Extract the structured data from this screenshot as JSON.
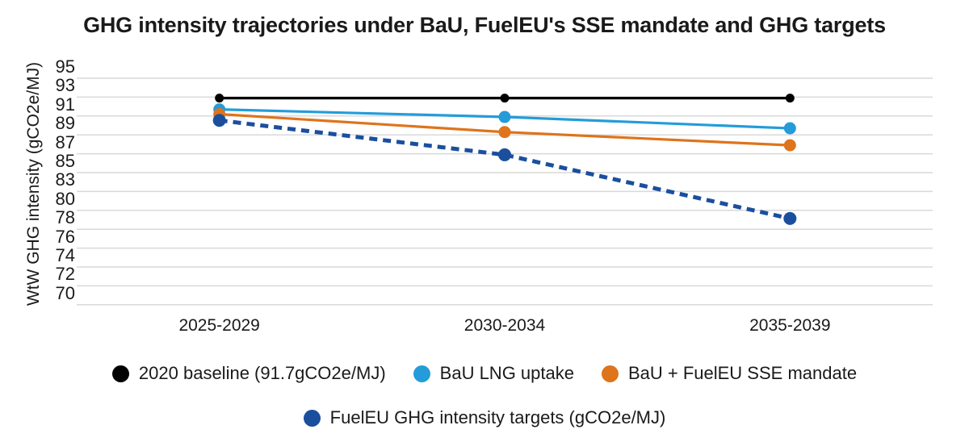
{
  "chart_data": {
    "type": "line",
    "title": "GHG intensity trajectories under BaU, FuelEU's SSE mandate and GHG targets",
    "ylabel": "WtW GHG intensity (gCO2e/MJ)",
    "xlabel": "",
    "categories": [
      "2025-2029",
      "2030-2034",
      "2035-2039"
    ],
    "y_ticks": [
      95,
      93,
      91,
      89,
      87,
      85,
      83,
      80,
      78,
      76,
      74,
      72,
      70
    ],
    "ylim": [
      70,
      95
    ],
    "grid": "horizontal",
    "legend_position": "bottom",
    "series": [
      {
        "name": "2020 baseline (91.7gCO2e/MJ)",
        "color": "#000000",
        "line_style": "solid",
        "values": [
          91.7,
          91.7,
          91.7
        ]
      },
      {
        "name": "BaU LNG uptake",
        "color": "#249CD9",
        "line_style": "solid",
        "values": [
          90.5,
          89.7,
          88.5
        ]
      },
      {
        "name": "BaU + FuelEU SSE mandate",
        "color": "#DE741C",
        "line_style": "solid",
        "values": [
          90.0,
          88.1,
          86.7
        ]
      },
      {
        "name": "FuelEU GHG intensity targets (gCO2e/MJ)",
        "color": "#1B4F9E",
        "line_style": "dashed",
        "values": [
          89.34,
          85.69,
          77.94
        ]
      }
    ],
    "legend_rows": [
      [
        0,
        1,
        2
      ],
      [
        3
      ]
    ]
  },
  "colors": {
    "background": "#FFFFFF",
    "gridline": "#D9D9D9",
    "text": "#1A1A1A"
  }
}
